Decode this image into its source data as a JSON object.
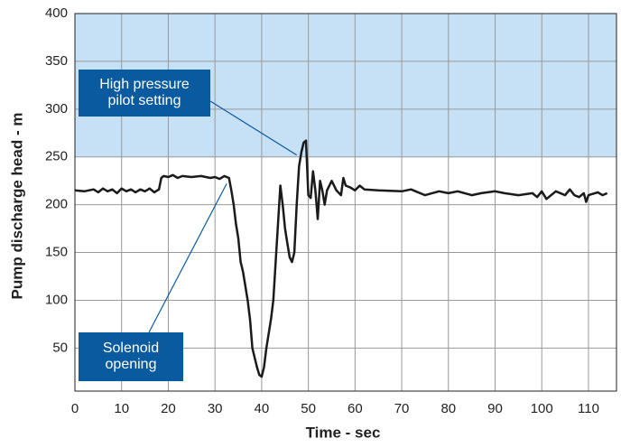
{
  "chart_data": {
    "type": "line",
    "x_label": "Time - sec",
    "y_label": "Pump discharge head - m",
    "x": [
      0,
      2,
      4,
      5,
      6,
      7,
      8,
      9,
      10,
      11,
      12,
      13,
      14,
      15,
      16,
      17,
      18,
      18.5,
      19,
      20,
      21,
      22,
      23,
      25,
      27,
      29,
      30,
      31,
      32,
      33,
      33.5,
      34,
      34.5,
      35,
      35.5,
      36,
      37,
      37.5,
      38,
      39,
      39.5,
      40,
      40.5,
      41,
      42,
      42.5,
      43,
      43.5,
      44,
      44.5,
      45,
      45.5,
      46,
      46.5,
      47,
      47.5,
      48,
      48.5,
      49,
      49.5,
      50,
      50.5,
      51,
      51.5,
      52,
      52.5,
      53,
      53.5,
      54,
      55,
      56,
      57,
      57.5,
      58,
      59,
      60,
      61,
      62,
      65,
      70,
      72,
      75,
      78,
      80,
      82,
      85,
      87,
      90,
      92,
      95,
      98,
      99,
      100,
      101,
      103,
      105,
      106,
      107,
      108,
      109,
      109.5,
      110,
      112,
      113,
      114
    ],
    "values": [
      215,
      214,
      216,
      213,
      217,
      214,
      216,
      212,
      217,
      214,
      216,
      213,
      216,
      214,
      217,
      213,
      216,
      228,
      230,
      229,
      231,
      228,
      230,
      229,
      230,
      228,
      229,
      227,
      230,
      228,
      215,
      200,
      180,
      165,
      140,
      130,
      100,
      80,
      50,
      30,
      22,
      20,
      30,
      50,
      80,
      100,
      140,
      180,
      220,
      200,
      175,
      160,
      145,
      140,
      150,
      200,
      240,
      255,
      265,
      267,
      210,
      207,
      235,
      215,
      185,
      225,
      215,
      200,
      215,
      225,
      215,
      210,
      228,
      220,
      218,
      215,
      220,
      216,
      215,
      214,
      216,
      210,
      214,
      212,
      214,
      210,
      212,
      214,
      212,
      210,
      212,
      208,
      214,
      206,
      214,
      210,
      216,
      210,
      208,
      212,
      203,
      210,
      213,
      210,
      212
    ],
    "color": "#1a1a1a",
    "xlim": [
      0,
      116
    ],
    "xticks": [
      0,
      10,
      20,
      30,
      40,
      50,
      60,
      70,
      80,
      90,
      100,
      110
    ],
    "ylim": [
      5,
      400
    ],
    "yticks": [
      50,
      100,
      150,
      200,
      250,
      300,
      350,
      400
    ],
    "grid": true,
    "band": {
      "ylim": [
        250,
        400
      ],
      "color": "#c6e0f6"
    },
    "annotations": [
      {
        "text": [
          "High pressure",
          "pilot setting"
        ],
        "x": 47.5,
        "y": 252
      },
      {
        "text": [
          "Solenoid",
          "opening"
        ],
        "x": 32.5,
        "y": 222
      }
    ],
    "annotation_color": "#0a5aa0"
  }
}
